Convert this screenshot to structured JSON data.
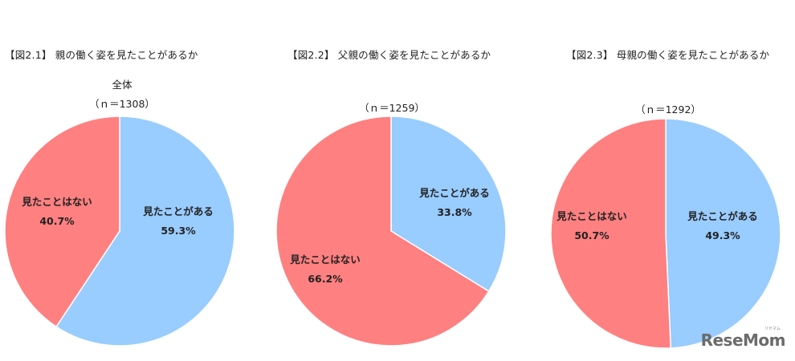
{
  "colors": {
    "seen": "#99CCFF",
    "not_seen": "#FF8080"
  },
  "chart_data": [
    {
      "type": "pie",
      "title": "【図2.1】 親の働く姿を見たことがあるか",
      "subtitle": "全体",
      "n_label": "（ｎ＝1308）",
      "slices": [
        {
          "label": "見たことがある",
          "value": 59.3,
          "value_label": "59.3%"
        },
        {
          "label": "見たことはない",
          "value": 40.7,
          "value_label": "40.7%"
        }
      ]
    },
    {
      "type": "pie",
      "title": "【図2.2】 父親の働く姿を見たことがあるか",
      "subtitle": "",
      "n_label": "（ｎ＝1259）",
      "slices": [
        {
          "label": "見たことがある",
          "value": 33.8,
          "value_label": "33.8%"
        },
        {
          "label": "見たことはない",
          "value": 66.2,
          "value_label": "66.2%"
        }
      ]
    },
    {
      "type": "pie",
      "title": "【図2.3】 母親の働く姿を見たことがあるか",
      "subtitle": "",
      "n_label": "（ｎ＝1292）",
      "slices": [
        {
          "label": "見たことがある",
          "value": 49.3,
          "value_label": "49.3%"
        },
        {
          "label": "見たことはない",
          "value": 50.7,
          "value_label": "50.7%"
        }
      ]
    }
  ],
  "watermark": {
    "text": "ReseMom",
    "ruby": "リセマム"
  }
}
